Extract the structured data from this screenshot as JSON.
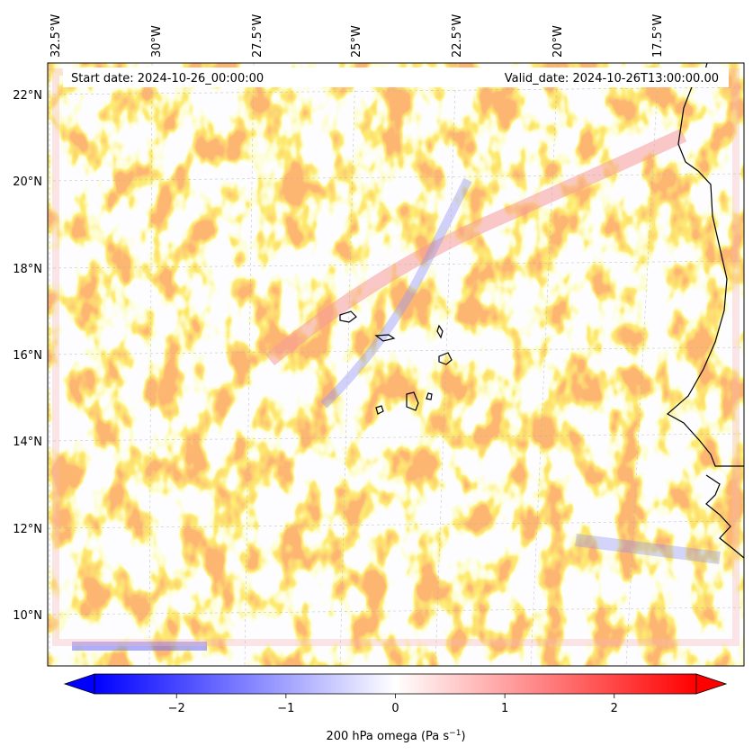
{
  "figure": {
    "start_label": "Start date: 2024-10-26_00:00:00",
    "valid_label": "Valid_date: 2024-10-26T13:00:00.00"
  },
  "map": {
    "lon_ticks": [
      "32.5°W",
      "30°W",
      "27.5°W",
      "25°W",
      "22.5°W",
      "20°W",
      "17.5°W"
    ],
    "lat_ticks": [
      "22°N",
      "20°N",
      "18°N",
      "16°N",
      "14°N",
      "12°N",
      "10°N"
    ]
  },
  "colorbar": {
    "label_main": "200 hPa omega (Pa s",
    "label_exp": "−1",
    "label_close": ")",
    "ticks": [
      "−2",
      "−1",
      "0",
      "1",
      "2"
    ],
    "tick_values": [
      -2,
      -1,
      0,
      1,
      2
    ],
    "vmin": -2.75,
    "vmax": 2.75,
    "colors": {
      "negative": "#0000ff",
      "zero": "#ffffff",
      "positive": "#ff0000"
    }
  }
}
